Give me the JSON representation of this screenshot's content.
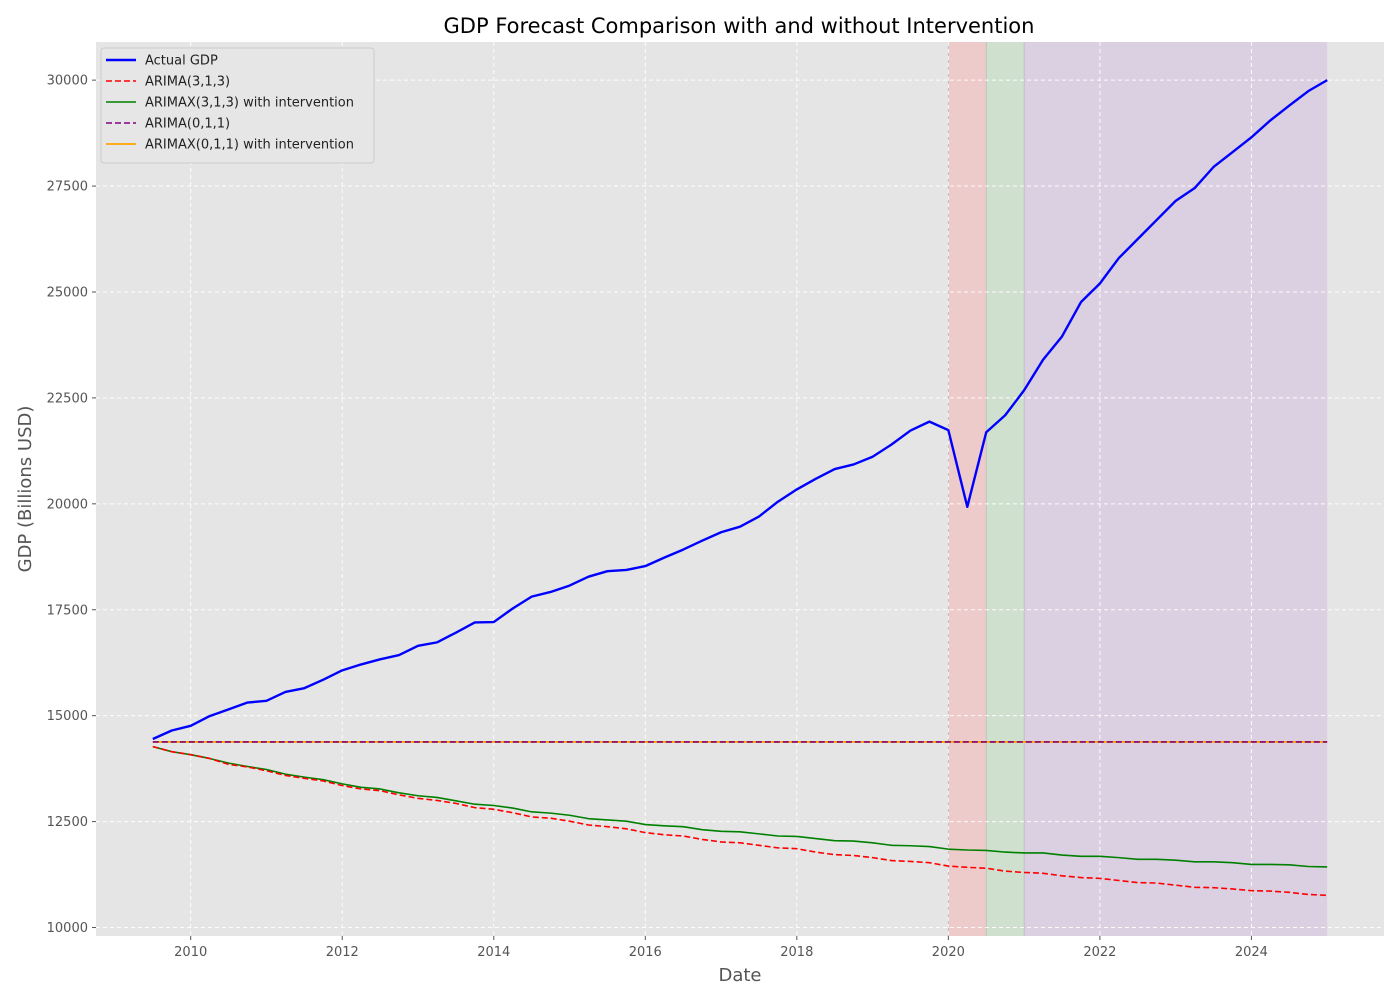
{
  "chart_data": {
    "type": "line",
    "title": "GDP Forecast Comparison with and without Intervention",
    "xlabel": "Date",
    "ylabel": "GDP (Billions USD)",
    "xlim": [
      2008.75,
      2025.75
    ],
    "ylim": [
      9800,
      30900
    ],
    "x_ticks": [
      2010,
      2012,
      2014,
      2016,
      2018,
      2020,
      2022,
      2024
    ],
    "y_ticks": [
      10000,
      12500,
      15000,
      17500,
      20000,
      22500,
      25000,
      27500,
      30000
    ],
    "grid": true,
    "legend_position": "top-left",
    "shaded_regions": [
      {
        "start": 2020.0,
        "end": 2020.5,
        "color": "#ff9a9a",
        "opacity": 0.35
      },
      {
        "start": 2020.5,
        "end": 2021.0,
        "color": "#a6d6a6",
        "opacity": 0.35
      },
      {
        "start": 2021.0,
        "end": 2025.0,
        "color": "#c9a6dc",
        "opacity": 0.35
      }
    ],
    "x": [
      2009.5,
      2009.75,
      2010.0,
      2010.25,
      2010.5,
      2010.75,
      2011.0,
      2011.25,
      2011.5,
      2011.75,
      2012.0,
      2012.25,
      2012.5,
      2012.75,
      2013.0,
      2013.25,
      2013.5,
      2013.75,
      2014.0,
      2014.25,
      2014.5,
      2014.75,
      2015.0,
      2015.25,
      2015.5,
      2015.75,
      2016.0,
      2016.25,
      2016.5,
      2016.75,
      2017.0,
      2017.25,
      2017.5,
      2017.75,
      2018.0,
      2018.25,
      2018.5,
      2018.75,
      2019.0,
      2019.25,
      2019.5,
      2019.75,
      2020.0,
      2020.25,
      2020.5,
      2020.75,
      2021.0,
      2021.25,
      2021.5,
      2021.75,
      2022.0,
      2022.25,
      2022.5,
      2022.75,
      2023.0,
      2023.25,
      2023.5,
      2023.75,
      2024.0,
      2024.25,
      2024.5,
      2024.75,
      2025.0
    ],
    "series": [
      {
        "name": "Actual GDP",
        "color": "#0000ff",
        "dash": "solid",
        "width": 2.4,
        "values": [
          14450,
          14650,
          14760,
          14990,
          15150,
          15310,
          15350,
          15560,
          15650,
          15850,
          16070,
          16210,
          16330,
          16430,
          16650,
          16730,
          16960,
          17200,
          17210,
          17530,
          17810,
          17920,
          18070,
          18280,
          18410,
          18440,
          18530,
          18730,
          18920,
          19130,
          19330,
          19460,
          19700,
          20050,
          20340,
          20590,
          20820,
          20930,
          21110,
          21400,
          21730,
          21940,
          21740,
          19930,
          21690,
          22090,
          22680,
          23400,
          23950,
          24760,
          25200,
          25800,
          26250,
          26700,
          27150,
          27450,
          27950,
          28300,
          28650,
          29050,
          29400,
          29740,
          30000
        ]
      },
      {
        "name": "ARIMA(3,1,3)",
        "color": "#ff0000",
        "dash": "dashed",
        "width": 1.6,
        "values": [
          14270,
          14150,
          14080,
          13990,
          13850,
          13790,
          13700,
          13590,
          13520,
          13460,
          13350,
          13270,
          13230,
          13130,
          13050,
          13000,
          12930,
          12830,
          12790,
          12710,
          12610,
          12580,
          12510,
          12420,
          12380,
          12330,
          12240,
          12190,
          12160,
          12080,
          12020,
          12000,
          11940,
          11880,
          11860,
          11780,
          11720,
          11700,
          11650,
          11580,
          11560,
          11530,
          11450,
          11420,
          11400,
          11330,
          11300,
          11280,
          11220,
          11180,
          11160,
          11110,
          11060,
          11050,
          11000,
          10950,
          10940,
          10910,
          10870,
          10860,
          10830,
          10780,
          10760
        ]
      },
      {
        "name": "ARIMAX(3,1,3) with intervention",
        "color": "#008000",
        "dash": "solid",
        "width": 1.6,
        "values": [
          14270,
          14150,
          14080,
          13990,
          13880,
          13800,
          13730,
          13620,
          13550,
          13490,
          13390,
          13310,
          13270,
          13180,
          13110,
          13070,
          12990,
          12910,
          12880,
          12820,
          12730,
          12700,
          12650,
          12570,
          12540,
          12510,
          12430,
          12400,
          12380,
          12310,
          12270,
          12260,
          12210,
          12160,
          12150,
          12100,
          12050,
          12040,
          12000,
          11940,
          11930,
          11910,
          11850,
          11830,
          11820,
          11780,
          11760,
          11760,
          11710,
          11680,
          11680,
          11650,
          11610,
          11610,
          11590,
          11550,
          11550,
          11530,
          11490,
          11490,
          11480,
          11440,
          11430
        ]
      },
      {
        "name": "ARIMA(0,1,1)",
        "color": "#800080",
        "dash": "dashed",
        "width": 1.6,
        "constant": 14380
      },
      {
        "name": "ARIMAX(0,1,1) with intervention",
        "color": "#ffa500",
        "dash": "solid",
        "width": 1.8,
        "constant": 14380
      }
    ]
  }
}
